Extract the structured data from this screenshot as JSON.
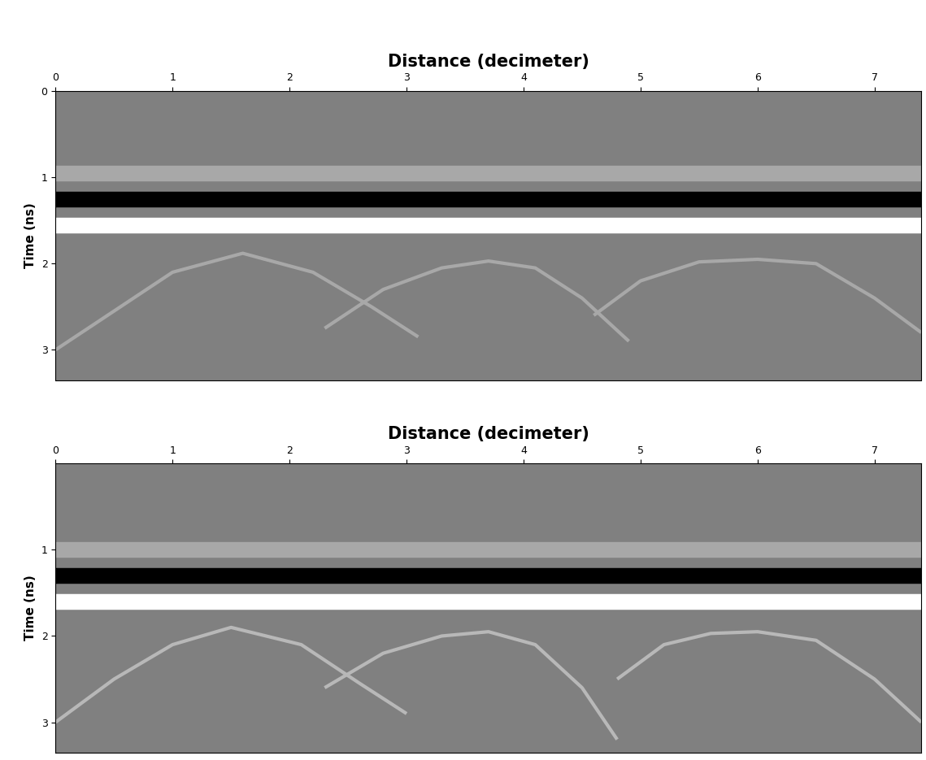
{
  "chart_data": [
    {
      "type": "line",
      "title": "Distance (decimeter)",
      "y_label": "Time (ns)",
      "xlim": [
        0,
        7.4
      ],
      "xticks": [
        0,
        1,
        2,
        3,
        4,
        5,
        6,
        7
      ],
      "ylim": [
        3.35,
        0
      ],
      "yticks": [
        0,
        1,
        2,
        3
      ],
      "grid": false,
      "background": "#808080",
      "series": [
        {
          "type": "band",
          "color": "#a8a8a8",
          "x": [
            0,
            7.4
          ],
          "values": [
            0.95,
            0.95
          ]
        },
        {
          "type": "band",
          "color": "#000000",
          "x": [
            0,
            7.4
          ],
          "values": [
            1.25,
            1.25
          ]
        },
        {
          "type": "band",
          "color": "#ffffff",
          "x": [
            0,
            7.4
          ],
          "values": [
            1.55,
            1.55
          ]
        },
        {
          "type": "line",
          "color": "#a8a8a8",
          "x": [
            0,
            0.5,
            1.0,
            1.6,
            2.2,
            2.7,
            3.1
          ],
          "values": [
            3.0,
            2.55,
            2.1,
            1.88,
            2.1,
            2.5,
            2.85
          ]
        },
        {
          "type": "line",
          "color": "#a8a8a8",
          "x": [
            2.3,
            2.8,
            3.3,
            3.7,
            4.1,
            4.5,
            4.9
          ],
          "values": [
            2.75,
            2.3,
            2.05,
            1.97,
            2.05,
            2.4,
            2.9
          ]
        },
        {
          "type": "line",
          "color": "#a8a8a8",
          "x": [
            4.6,
            5.0,
            5.5,
            6.0,
            6.5,
            7.0,
            7.4
          ],
          "values": [
            2.6,
            2.2,
            1.98,
            1.95,
            2.0,
            2.4,
            2.8
          ]
        }
      ]
    },
    {
      "type": "line",
      "title": "Distance (decimeter)",
      "y_label": "Time (ns)",
      "xlim": [
        0,
        7.4
      ],
      "xticks": [
        0,
        1,
        2,
        3,
        4,
        5,
        6,
        7
      ],
      "ylim": [
        3.35,
        0
      ],
      "yticks": [
        1,
        2,
        3
      ],
      "grid": false,
      "background": "#808080",
      "series": [
        {
          "type": "band",
          "color": "#a8a8a8",
          "x": [
            0,
            7.4
          ],
          "values": [
            1.0,
            1.0
          ]
        },
        {
          "type": "band",
          "color": "#000000",
          "x": [
            0,
            7.4
          ],
          "values": [
            1.3,
            1.3
          ]
        },
        {
          "type": "band",
          "color": "#ffffff",
          "x": [
            0,
            7.4
          ],
          "values": [
            1.6,
            1.6
          ]
        },
        {
          "type": "line",
          "color": "#b8b8b8",
          "x": [
            0,
            0.5,
            1.0,
            1.5,
            2.1,
            2.6,
            3.0
          ],
          "values": [
            3.0,
            2.5,
            2.1,
            1.9,
            2.1,
            2.55,
            2.9
          ]
        },
        {
          "type": "line",
          "color": "#b8b8b8",
          "x": [
            2.3,
            2.8,
            3.3,
            3.7,
            4.1,
            4.5,
            4.8
          ],
          "values": [
            2.6,
            2.2,
            2.0,
            1.95,
            2.1,
            2.6,
            3.2
          ]
        },
        {
          "type": "line",
          "color": "#b8b8b8",
          "x": [
            4.8,
            5.2,
            5.6,
            6.0,
            6.5,
            7.0,
            7.4
          ],
          "values": [
            2.5,
            2.1,
            1.97,
            1.95,
            2.05,
            2.5,
            3.0
          ]
        }
      ]
    }
  ]
}
